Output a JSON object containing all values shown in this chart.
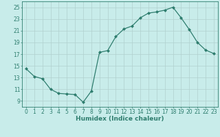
{
  "x": [
    0,
    1,
    2,
    3,
    4,
    5,
    6,
    7,
    8,
    9,
    10,
    11,
    12,
    13,
    14,
    15,
    16,
    17,
    18,
    19,
    20,
    21,
    22,
    23
  ],
  "y": [
    14.5,
    13.2,
    12.8,
    11.0,
    10.3,
    10.2,
    10.1,
    8.8,
    10.7,
    17.3,
    17.6,
    20.0,
    21.3,
    21.8,
    23.2,
    24.0,
    24.2,
    24.5,
    25.0,
    23.2,
    21.2,
    19.0,
    17.7,
    17.1
  ],
  "line_color": "#2e7d6e",
  "marker": "D",
  "marker_size": 2.0,
  "bg_color": "#c8ecea",
  "grid_color": "#b0d0ce",
  "xlabel": "Humidex (Indice chaleur)",
  "ylim": [
    8,
    26
  ],
  "xlim": [
    -0.5,
    23.5
  ],
  "yticks": [
    9,
    11,
    13,
    15,
    17,
    19,
    21,
    23,
    25
  ],
  "xticks": [
    0,
    1,
    2,
    3,
    4,
    5,
    6,
    7,
    8,
    9,
    10,
    11,
    12,
    13,
    14,
    15,
    16,
    17,
    18,
    19,
    20,
    21,
    22,
    23
  ],
  "axis_color": "#2e7d6e",
  "tick_color": "#2e7d6e",
  "label_fontsize": 6.5,
  "tick_fontsize": 5.5
}
